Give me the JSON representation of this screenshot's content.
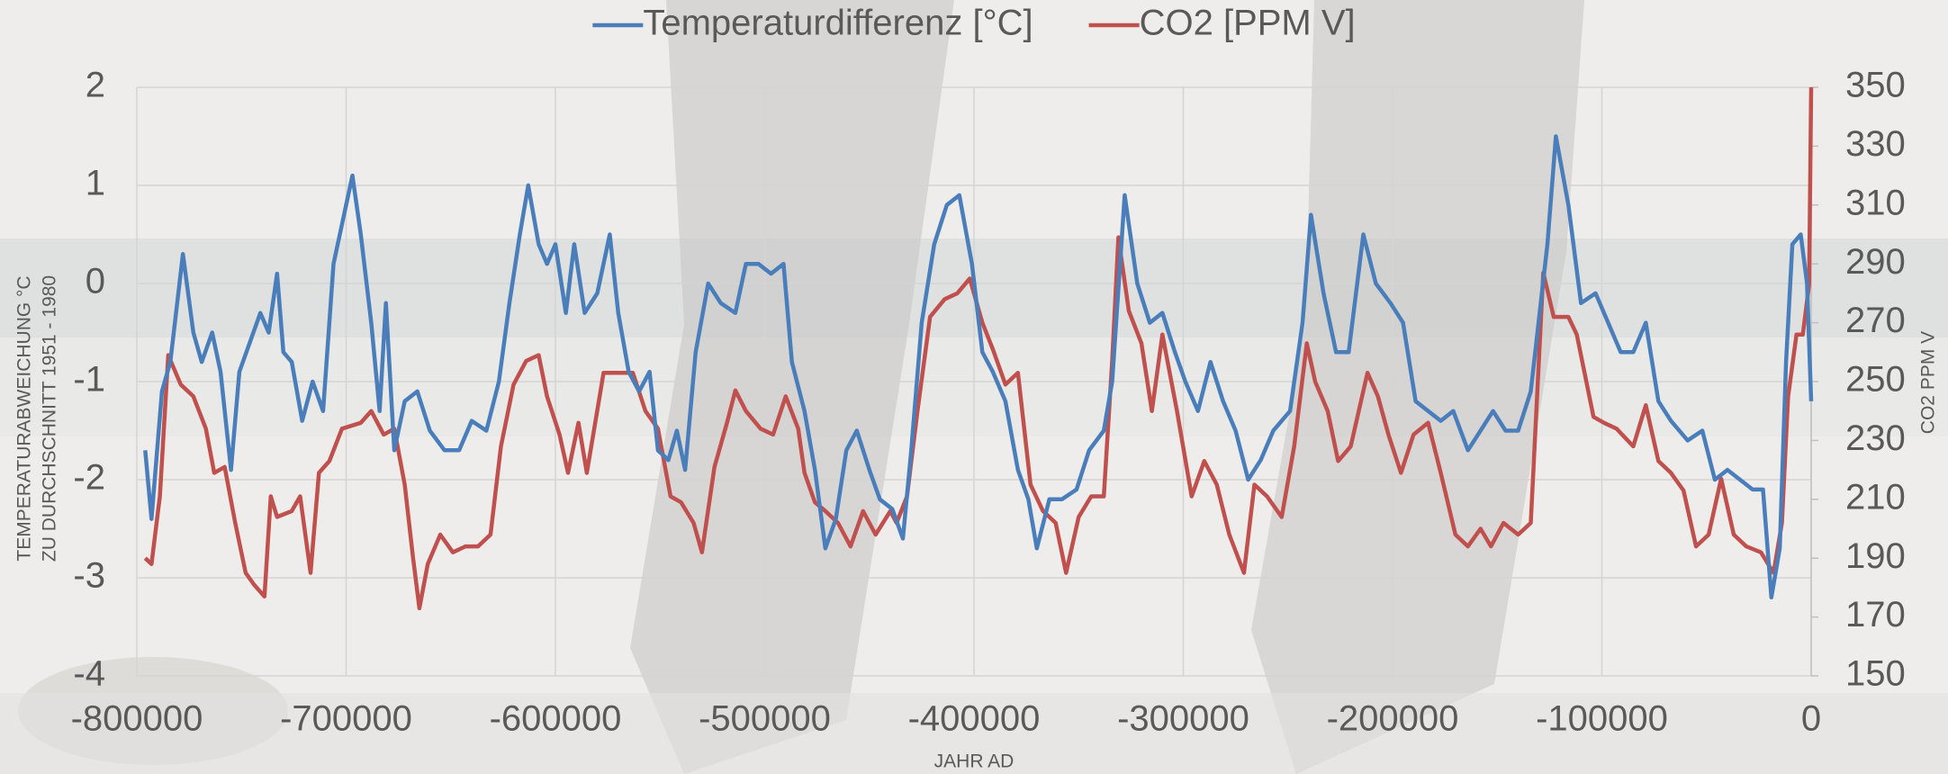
{
  "chart_data": {
    "type": "line",
    "x_label": "JAHR AD",
    "y_label": [
      "TEMPERATURABWEICHUNG °C",
      "ZU DURCHSCHNITT 1951 - 1980"
    ],
    "y2_label": "CO2 PPM V",
    "legend": "top",
    "grid": true,
    "xlim": [
      -800000,
      0
    ],
    "xticks": [
      -800000,
      -700000,
      -600000,
      -500000,
      -400000,
      -300000,
      -200000,
      -100000,
      0
    ],
    "ylim": [
      -4,
      2
    ],
    "yticks": [
      -4,
      -3,
      -2,
      -1,
      0,
      1,
      2
    ],
    "y2lim": [
      150,
      350
    ],
    "y2ticks": [
      150,
      170,
      190,
      210,
      230,
      250,
      270,
      290,
      310,
      330,
      350
    ],
    "series": [
      {
        "name": "Temperaturdifferenz [°C]",
        "color": "#4a7ebb",
        "axis": "y",
        "x": [
          -796000,
          -793000,
          -788000,
          -784000,
          -778000,
          -773000,
          -769000,
          -764000,
          -760000,
          -755000,
          -751000,
          -746000,
          -741000,
          -737000,
          -733000,
          -730000,
          -726000,
          -721000,
          -716000,
          -711000,
          -706000,
          -697000,
          -693000,
          -688000,
          -684000,
          -681000,
          -677000,
          -672000,
          -666000,
          -660000,
          -653000,
          -646000,
          -640000,
          -633000,
          -627000,
          -622000,
          -617000,
          -613000,
          -608000,
          -604000,
          -600000,
          -595000,
          -591000,
          -586000,
          -580000,
          -574000,
          -570000,
          -565000,
          -560000,
          -555000,
          -551000,
          -546000,
          -542000,
          -538000,
          -533000,
          -527000,
          -521000,
          -514000,
          -509000,
          -503000,
          -497000,
          -491000,
          -487000,
          -481000,
          -476000,
          -471000,
          -466000,
          -461000,
          -456000,
          -450000,
          -445000,
          -439000,
          -434000,
          -430000,
          -425000,
          -419000,
          -413000,
          -407000,
          -401000,
          -396000,
          -391000,
          -385000,
          -379000,
          -374000,
          -370000,
          -364000,
          -358000,
          -351000,
          -345000,
          -338000,
          -334000,
          -328000,
          -322000,
          -316000,
          -310000,
          -304000,
          -299000,
          -293000,
          -287000,
          -281000,
          -275000,
          -269000,
          -263000,
          -257000,
          -249000,
          -243000,
          -239000,
          -233000,
          -227000,
          -221000,
          -214000,
          -208000,
          -201000,
          -195000,
          -189000,
          -183000,
          -177000,
          -171000,
          -164000,
          -158000,
          -152000,
          -146000,
          -140000,
          -134000,
          -126000,
          -122000,
          -116000,
          -110000,
          -103000,
          -97000,
          -91000,
          -85000,
          -79000,
          -73000,
          -67000,
          -59000,
          -52000,
          -46000,
          -40000,
          -34000,
          -28000,
          -23000,
          -19000,
          -15000,
          -12000,
          -9000,
          -5000,
          -2000,
          0
        ],
        "values": [
          -1.7,
          -2.4,
          -1.1,
          -0.8,
          0.3,
          -0.5,
          -0.8,
          -0.5,
          -0.9,
          -1.9,
          -0.9,
          -0.6,
          -0.3,
          -0.5,
          0.1,
          -0.7,
          -0.8,
          -1.4,
          -1.0,
          -1.3,
          0.2,
          1.1,
          0.5,
          -0.4,
          -1.3,
          -0.2,
          -1.7,
          -1.2,
          -1.1,
          -1.5,
          -1.7,
          -1.7,
          -1.4,
          -1.5,
          -1.0,
          -0.2,
          0.5,
          1.0,
          0.4,
          0.2,
          0.4,
          -0.3,
          0.4,
          -0.3,
          -0.1,
          0.5,
          -0.3,
          -0.9,
          -1.1,
          -0.9,
          -1.7,
          -1.8,
          -1.5,
          -1.9,
          -0.7,
          0,
          -0.2,
          -0.3,
          0.2,
          0.2,
          0.1,
          0.2,
          -0.8,
          -1.3,
          -1.9,
          -2.7,
          -2.4,
          -1.7,
          -1.5,
          -1.9,
          -2.2,
          -2.3,
          -2.6,
          -1.7,
          -0.4,
          0.4,
          0.8,
          0.9,
          0.2,
          -0.7,
          -0.9,
          -1.2,
          -1.9,
          -2.2,
          -2.7,
          -2.2,
          -2.2,
          -2.1,
          -1.7,
          -1.5,
          -1.0,
          0.9,
          0,
          -0.4,
          -0.3,
          -0.7,
          -1.0,
          -1.3,
          -0.8,
          -1.2,
          -1.5,
          -2.0,
          -1.8,
          -1.5,
          -1.3,
          -0.4,
          0.7,
          -0.1,
          -0.7,
          -0.7,
          0.5,
          0,
          -0.2,
          -0.4,
          -1.2,
          -1.3,
          -1.4,
          -1.3,
          -1.7,
          -1.5,
          -1.3,
          -1.5,
          -1.5,
          -1.1,
          0.4,
          1.5,
          0.8,
          -0.2,
          -0.1,
          -0.4,
          -0.7,
          -0.7,
          -0.4,
          -1.2,
          -1.4,
          -1.6,
          -1.5,
          -2.0,
          -1.9,
          -2.0,
          -2.1,
          -2.1,
          -3.2,
          -2.7,
          -0.8,
          0.4,
          0.5,
          0,
          -1.2
        ]
      },
      {
        "name": "CO2 [PPM V]",
        "color": "#c0504d",
        "axis": "y2",
        "x": [
          -796000,
          -793000,
          -789000,
          -785000,
          -779000,
          -773000,
          -767000,
          -763000,
          -758000,
          -753000,
          -748000,
          -744000,
          -739000,
          -736000,
          -733000,
          -726000,
          -722000,
          -717000,
          -713000,
          -708000,
          -702000,
          -693000,
          -688000,
          -682000,
          -677000,
          -672000,
          -668000,
          -665000,
          -661000,
          -655000,
          -649000,
          -643000,
          -637000,
          -631000,
          -626000,
          -620000,
          -614000,
          -608000,
          -604000,
          -598000,
          -594000,
          -589000,
          -585000,
          -577000,
          -570000,
          -563000,
          -557000,
          -551000,
          -545000,
          -540000,
          -534000,
          -530000,
          -524000,
          -518000,
          -514000,
          -509000,
          -502000,
          -496000,
          -490000,
          -484000,
          -481000,
          -476000,
          -471000,
          -465000,
          -459000,
          -453000,
          -447000,
          -440000,
          -437000,
          -432000,
          -427000,
          -421000,
          -414000,
          -408000,
          -402000,
          -396000,
          -391000,
          -385000,
          -379000,
          -373000,
          -367000,
          -361000,
          -356000,
          -350000,
          -344000,
          -338000,
          -334000,
          -331000,
          -326000,
          -320000,
          -315000,
          -310000,
          -303000,
          -296000,
          -290000,
          -284000,
          -278000,
          -271000,
          -266000,
          -260000,
          -253000,
          -247000,
          -241000,
          -237000,
          -231000,
          -226000,
          -220000,
          -212000,
          -207000,
          -202000,
          -196000,
          -190000,
          -183000,
          -177000,
          -170000,
          -164000,
          -158000,
          -153000,
          -147000,
          -140000,
          -134000,
          -128000,
          -123000,
          -116000,
          -112000,
          -104000,
          -99000,
          -93000,
          -85000,
          -79000,
          -73000,
          -67000,
          -61000,
          -55000,
          -49000,
          -43000,
          -37000,
          -31000,
          -24000,
          -18000,
          -14000,
          -11000,
          -7000,
          -4000,
          -1000,
          0
        ],
        "values": [
          190,
          188,
          211,
          259,
          249,
          245,
          234,
          219,
          221,
          202,
          185,
          181,
          177,
          211,
          204,
          206,
          211,
          185,
          219,
          223,
          234,
          236,
          240,
          232,
          234,
          215,
          190,
          173,
          188,
          198,
          192,
          194,
          194,
          198,
          228,
          249,
          257,
          259,
          245,
          232,
          219,
          236,
          219,
          253,
          253,
          253,
          240,
          234,
          211,
          209,
          202,
          192,
          221,
          236,
          247,
          240,
          234,
          232,
          245,
          234,
          219,
          209,
          206,
          202,
          194,
          206,
          198,
          206,
          202,
          211,
          240,
          272,
          278,
          280,
          285,
          270,
          261,
          249,
          253,
          215,
          206,
          202,
          185,
          204,
          211,
          211,
          257,
          299,
          274,
          263,
          240,
          266,
          240,
          211,
          223,
          215,
          198,
          185,
          215,
          211,
          204,
          228,
          263,
          250,
          240,
          223,
          228,
          253,
          245,
          232,
          219,
          232,
          236,
          219,
          198,
          194,
          200,
          194,
          202,
          198,
          202,
          287,
          272,
          272,
          266,
          238,
          236,
          234,
          228,
          242,
          223,
          219,
          213,
          194,
          198,
          217,
          198,
          194,
          192,
          185,
          202,
          245,
          266,
          266,
          283,
          350
        ]
      }
    ]
  }
}
